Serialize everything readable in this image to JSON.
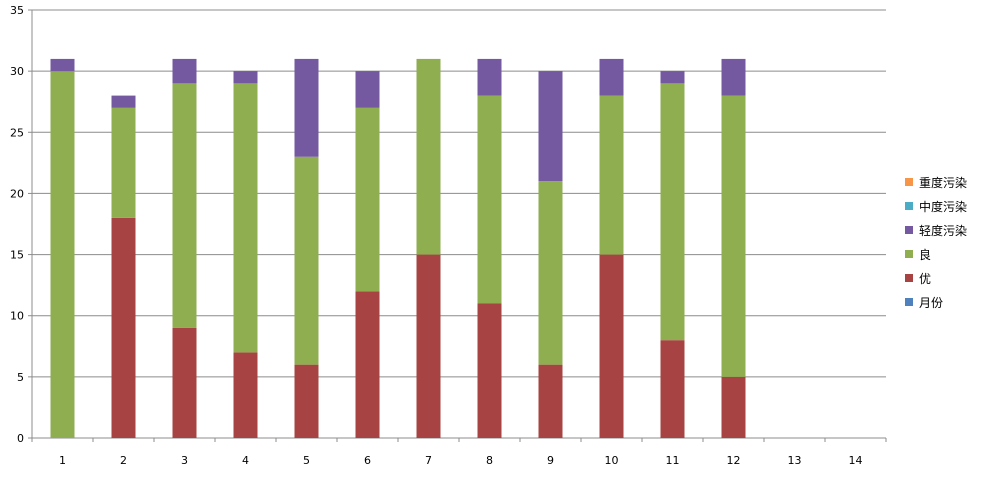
{
  "chart_data": {
    "type": "bar",
    "stacked": true,
    "categories": [
      "1",
      "2",
      "3",
      "4",
      "5",
      "6",
      "7",
      "8",
      "9",
      "10",
      "11",
      "12",
      "13",
      "14"
    ],
    "series": [
      {
        "name": "月份",
        "color": "#4f81bd",
        "values": [
          0,
          0,
          0,
          0,
          0,
          0,
          0,
          0,
          0,
          0,
          0,
          0,
          0,
          0
        ]
      },
      {
        "name": "优",
        "color": "#a84343",
        "values": [
          0,
          18,
          9,
          7,
          6,
          12,
          15,
          11,
          6,
          15,
          8,
          5,
          0,
          0
        ]
      },
      {
        "name": "良",
        "color": "#8fae50",
        "values": [
          30,
          9,
          20,
          22,
          17,
          15,
          16,
          17,
          15,
          13,
          21,
          23,
          0,
          0
        ]
      },
      {
        "name": "轻度污染",
        "color": "#7458a0",
        "values": [
          1,
          1,
          2,
          1,
          8,
          3,
          0,
          3,
          9,
          3,
          1,
          3,
          0,
          0
        ]
      },
      {
        "name": "中度污染",
        "color": "#4bacc6",
        "values": [
          0,
          0,
          0,
          0,
          0,
          0,
          0,
          0,
          0,
          0,
          0,
          0,
          0,
          0
        ]
      },
      {
        "name": "重度污染",
        "color": "#f79646",
        "values": [
          0,
          0,
          0,
          0,
          0,
          0,
          0,
          0,
          0,
          0,
          0,
          0,
          0,
          0
        ]
      }
    ],
    "ylim": [
      0,
      35
    ],
    "yticks": [
      "0",
      "5",
      "10",
      "15",
      "20",
      "25",
      "30",
      "35"
    ],
    "grid": true,
    "legend_position": "right",
    "title": "",
    "xlabel": "",
    "ylabel": ""
  },
  "legend": {
    "items": [
      {
        "label": "重度污染",
        "color": "#f79646"
      },
      {
        "label": "中度污染",
        "color": "#4bacc6"
      },
      {
        "label": "轻度污染",
        "color": "#7458a0"
      },
      {
        "label": "良",
        "color": "#8fae50"
      },
      {
        "label": "优",
        "color": "#a84343"
      },
      {
        "label": "月份",
        "color": "#4f81bd"
      }
    ]
  }
}
